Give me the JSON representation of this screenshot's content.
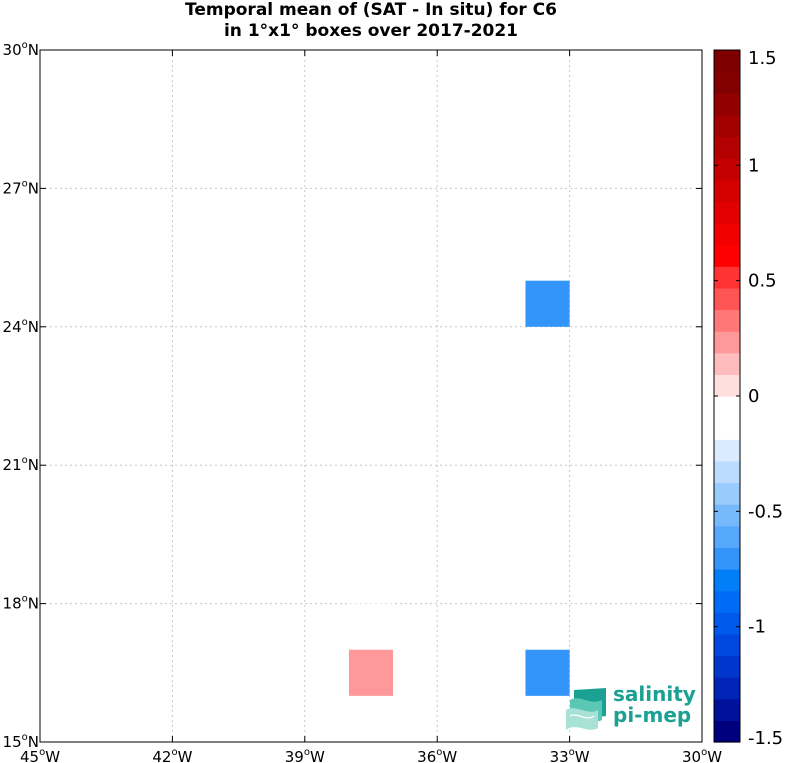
{
  "title_line1": "Temporal mean of (SAT - In situ) for C6",
  "title_line2": "in 1°x1° boxes over 2017-2021",
  "chart_data": {
    "type": "heatmap",
    "xlim": [
      -45,
      -30
    ],
    "ylim": [
      15,
      30
    ],
    "grid": true,
    "x_ticks": [
      {
        "value": -45,
        "num": "45",
        "hem": "W"
      },
      {
        "value": -42,
        "num": "42",
        "hem": "W"
      },
      {
        "value": -39,
        "num": "39",
        "hem": "W"
      },
      {
        "value": -36,
        "num": "36",
        "hem": "W"
      },
      {
        "value": -33,
        "num": "33",
        "hem": "W"
      },
      {
        "value": -30,
        "num": "30",
        "hem": "W"
      }
    ],
    "y_ticks": [
      {
        "value": 15,
        "num": "15",
        "hem": "N"
      },
      {
        "value": 18,
        "num": "18",
        "hem": "N"
      },
      {
        "value": 21,
        "num": "21",
        "hem": "N"
      },
      {
        "value": 24,
        "num": "24",
        "hem": "N"
      },
      {
        "value": 27,
        "num": "27",
        "hem": "N"
      },
      {
        "value": 30,
        "num": "30",
        "hem": "N"
      }
    ],
    "cells": [
      {
        "lon_min": -34,
        "lat_min": 24,
        "value": -0.7
      },
      {
        "lon_min": -38,
        "lat_min": 17,
        "value": -0.1
      },
      {
        "lon_min": -38,
        "lat_min": 16,
        "value": 0.2
      },
      {
        "lon_min": -34,
        "lat_min": 16,
        "value": -0.7
      }
    ],
    "colorbar": {
      "min": -1.5,
      "max": 1.5,
      "tick_values": [
        1.5,
        1,
        0.5,
        0,
        -0.5,
        -1,
        -1.5
      ],
      "tick_labels": [
        "1.5",
        "1",
        "0.5",
        "0",
        "-0.5",
        "-1",
        "-1.5"
      ],
      "colors": [
        "#00007f",
        "#00129b",
        "#0024b6",
        "#0036cc",
        "#0048df",
        "#005aec",
        "#006cf5",
        "#007ff9",
        "#3395fa",
        "#55a8fb",
        "#77bafc",
        "#99cbfd",
        "#bbdcfe",
        "#dbebff",
        "#ffffff",
        "#ffffff",
        "#ffdede",
        "#ffbcbc",
        "#ff9999",
        "#ff7777",
        "#ff5555",
        "#ff3333",
        "#ff0000",
        "#f20000",
        "#e30000",
        "#d40000",
        "#c40000",
        "#b30000",
        "#a30000",
        "#930000",
        "#830000",
        "#7f0000"
      ]
    }
  },
  "logo": {
    "line1": "salinity",
    "line2": "pi-mep",
    "color": "#1aa194"
  }
}
